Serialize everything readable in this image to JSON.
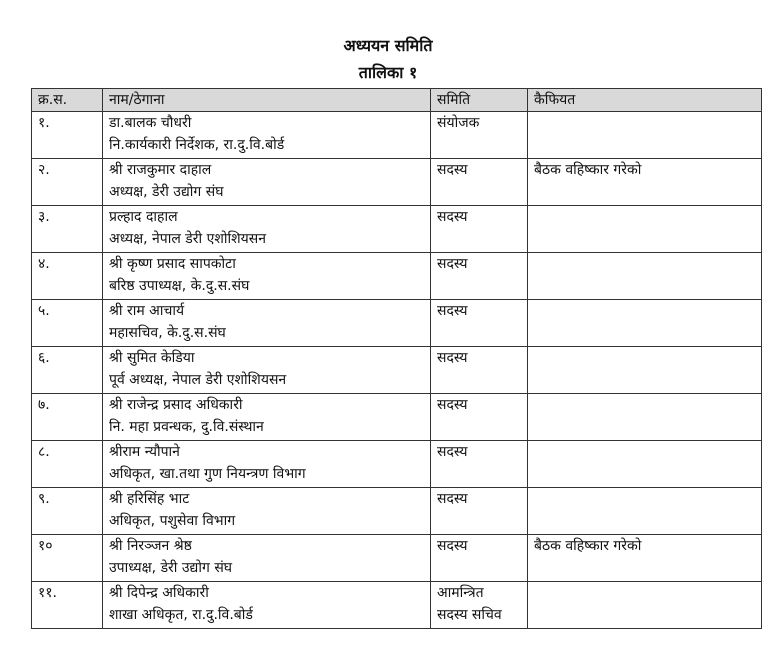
{
  "document": {
    "title": "अध्ययन समिति",
    "subtitle": "तालिका १",
    "table": {
      "headers": [
        "क्र.स.",
        "नाम/ठेगाना",
        "समिति",
        "कैफियत"
      ],
      "rows": [
        {
          "sn": "१.",
          "name": "डा.बालक चौधरी",
          "address": "नि.कार्यकारी निर्देशक, रा.दु.वि.बोर्ड",
          "committee": "संयोजक",
          "committee2": "",
          "remarks": ""
        },
        {
          "sn": "२.",
          "name": "श्री राजकुमार दाहाल",
          "address": "अध्यक्ष, डेरी उद्योग संघ",
          "committee": "सदस्य",
          "committee2": "",
          "remarks": "बैठक वहिष्कार गरेको"
        },
        {
          "sn": "३.",
          "name": "प्रल्हाद दाहाल",
          "address": "अध्यक्ष, नेपाल डेरी एशोशियसन",
          "committee": "सदस्य",
          "committee2": "",
          "remarks": ""
        },
        {
          "sn": "४.",
          "name": "श्री कृष्ण प्रसाद सापकोटा",
          "address": "बरिष्ठ उपाध्यक्ष, के.दु.स.संघ",
          "committee": "सदस्य",
          "committee2": "",
          "remarks": ""
        },
        {
          "sn": "५.",
          "name": "श्री राम आचार्य",
          "address": "महासचिव, के.दु.स.संघ",
          "committee": "सदस्य",
          "committee2": "",
          "remarks": ""
        },
        {
          "sn": "६.",
          "name": "श्री सुमित केडिया",
          "address": "पूर्व अध्यक्ष, नेपाल डेरी एशोशियसन",
          "committee": "सदस्य",
          "committee2": "",
          "remarks": ""
        },
        {
          "sn": "७.",
          "name": "श्री राजेन्द्र प्रसाद अधिकारी",
          "address": "नि. महा प्रवन्धक, दु.वि.संस्थान",
          "committee": "सदस्य",
          "committee2": "",
          "remarks": ""
        },
        {
          "sn": "८.",
          "name": "श्रीराम न्यौपाने",
          "address": "अधिकृत, खा.तथा गुण नियन्त्रण विभाग",
          "committee": "सदस्य",
          "committee2": "",
          "remarks": ""
        },
        {
          "sn": "९.",
          "name": "श्री हरिसिंह भाट",
          "address": "अधिकृत, पशुसेवा विभाग",
          "committee": "सदस्य",
          "committee2": "",
          "remarks": ""
        },
        {
          "sn": "१०",
          "name": "श्री निरञ्जन श्रेष्ठ",
          "address": "उपाध्यक्ष, डेरी उद्योग संघ",
          "committee": "सदस्य",
          "committee2": "",
          "remarks": "बैठक वहिष्कार गरेको"
        },
        {
          "sn": "११.",
          "name": "श्री दिपेन्द्र अधिकारी",
          "address": "शाखा अधिकृत, रा.दु.वि.बोर्ड",
          "committee": "आमन्त्रित",
          "committee2": "सदस्य सचिव",
          "remarks": ""
        }
      ]
    }
  }
}
